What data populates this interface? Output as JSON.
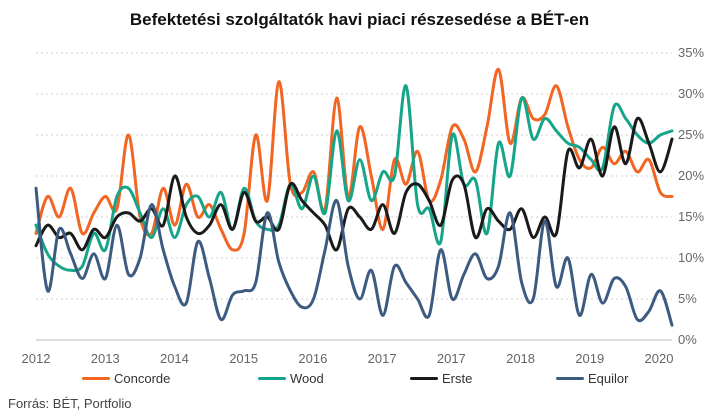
{
  "chart_data": {
    "type": "line",
    "title": "Befektetési szolgáltatók havi piaci részesedése a BÉT-en",
    "xlabel": "",
    "ylabel": "",
    "x_tick_labels": [
      "2012",
      "2013",
      "2014",
      "2015",
      "2016",
      "2017",
      "2017",
      "2018",
      "2019",
      "2020"
    ],
    "x": [
      2012.0,
      2012.2,
      2012.4,
      2012.6,
      2012.8,
      2013.0,
      2013.2,
      2013.4,
      2013.6,
      2013.8,
      2014.0,
      2014.2,
      2014.4,
      2014.6,
      2014.8,
      2015.0,
      2015.2,
      2015.4,
      2015.6,
      2015.8,
      2016.0,
      2016.2,
      2016.4,
      2016.6,
      2016.8,
      2017.0,
      2017.2,
      2017.4,
      2017.6,
      2017.8,
      2018.0,
      2018.2,
      2018.4,
      2018.6,
      2018.8,
      2019.0,
      2019.2,
      2019.4,
      2019.6,
      2019.8,
      2020.0,
      2020.2,
      2020.4,
      2020.6,
      2020.8,
      2021.0,
      2021.2,
      2021.4,
      2021.6,
      2021.8,
      2022.0,
      2022.2,
      2022.4,
      2022.6,
      2022.8,
      2023.0
    ],
    "ylim": [
      0,
      35
    ],
    "y_ticks": [
      0,
      5,
      10,
      15,
      20,
      25,
      30,
      35
    ],
    "y_tick_labels": [
      "0%",
      "5%",
      "10%",
      "15%",
      "20%",
      "25%",
      "30%",
      "35%"
    ],
    "grid": "horizontal dashed",
    "legend_position": "bottom",
    "series": [
      {
        "name": "Concorde",
        "color": "#f26522",
        "values": [
          13,
          17.5,
          15,
          18.5,
          13,
          15.5,
          17.5,
          16,
          25,
          15,
          13,
          18.5,
          14,
          19,
          15,
          16.5,
          13.5,
          11,
          13,
          25,
          17,
          31.5,
          19,
          18,
          20.5,
          16,
          29.5,
          17.5,
          26,
          20,
          13.5,
          22,
          19,
          23,
          17,
          19.5,
          26,
          24.5,
          20.5,
          26,
          33,
          24,
          29.5,
          27,
          27.5,
          31,
          26,
          22,
          21,
          23.5,
          21.5,
          23,
          20.5,
          22,
          18,
          17.5
        ]
      },
      {
        "name": "Wood",
        "color": "#17a589",
        "values": [
          14,
          10.5,
          9,
          8.5,
          9,
          13,
          11,
          17.5,
          18.5,
          15.5,
          12.5,
          16,
          12.5,
          16.5,
          17.5,
          15,
          18,
          13.5,
          18.5,
          14.5,
          13.5,
          14,
          19,
          16,
          20,
          15.5,
          25.5,
          17,
          22,
          17,
          20.5,
          20,
          31,
          16.5,
          16,
          12,
          25,
          19,
          19.5,
          13,
          24,
          20,
          29.5,
          24.5,
          27,
          25.5,
          24,
          23.5,
          22,
          21,
          28.5,
          27,
          25,
          24,
          25,
          25.5
        ]
      },
      {
        "name": "Erste",
        "color": "#1a1a1a",
        "values": [
          11.5,
          14,
          12.5,
          13,
          11,
          13.5,
          12.5,
          15,
          15.5,
          14.5,
          16,
          14,
          20,
          15,
          13,
          14,
          16.5,
          13.5,
          18,
          14.5,
          15,
          13.5,
          19,
          17,
          15.5,
          14,
          11,
          16,
          15,
          13.5,
          16.5,
          13,
          18,
          19,
          17,
          14,
          19.5,
          19,
          12.5,
          16,
          14.5,
          13.5,
          16,
          12.5,
          15,
          13,
          23,
          21,
          24.5,
          20,
          26,
          21.5,
          27,
          24,
          20.5,
          24.5
        ]
      },
      {
        "name": "Equilor",
        "color": "#3d5a80",
        "values": [
          18.5,
          6,
          13.5,
          10.5,
          7.5,
          10.5,
          7.5,
          14,
          8,
          10,
          16.5,
          11,
          6.5,
          4.5,
          12,
          7.5,
          2.5,
          5.5,
          6,
          7,
          15.5,
          9.5,
          6,
          4,
          5,
          11,
          17,
          9,
          5,
          8.5,
          3,
          9,
          7,
          5,
          3,
          11,
          5,
          8,
          10.5,
          7.5,
          9,
          15.5,
          7,
          5,
          14.5,
          6.5,
          10,
          3,
          8,
          4.5,
          7.5,
          6.5,
          2.5,
          3.5,
          6,
          1.8
        ]
      }
    ]
  },
  "source_text": "Forrás: BÉT, Portfolio"
}
